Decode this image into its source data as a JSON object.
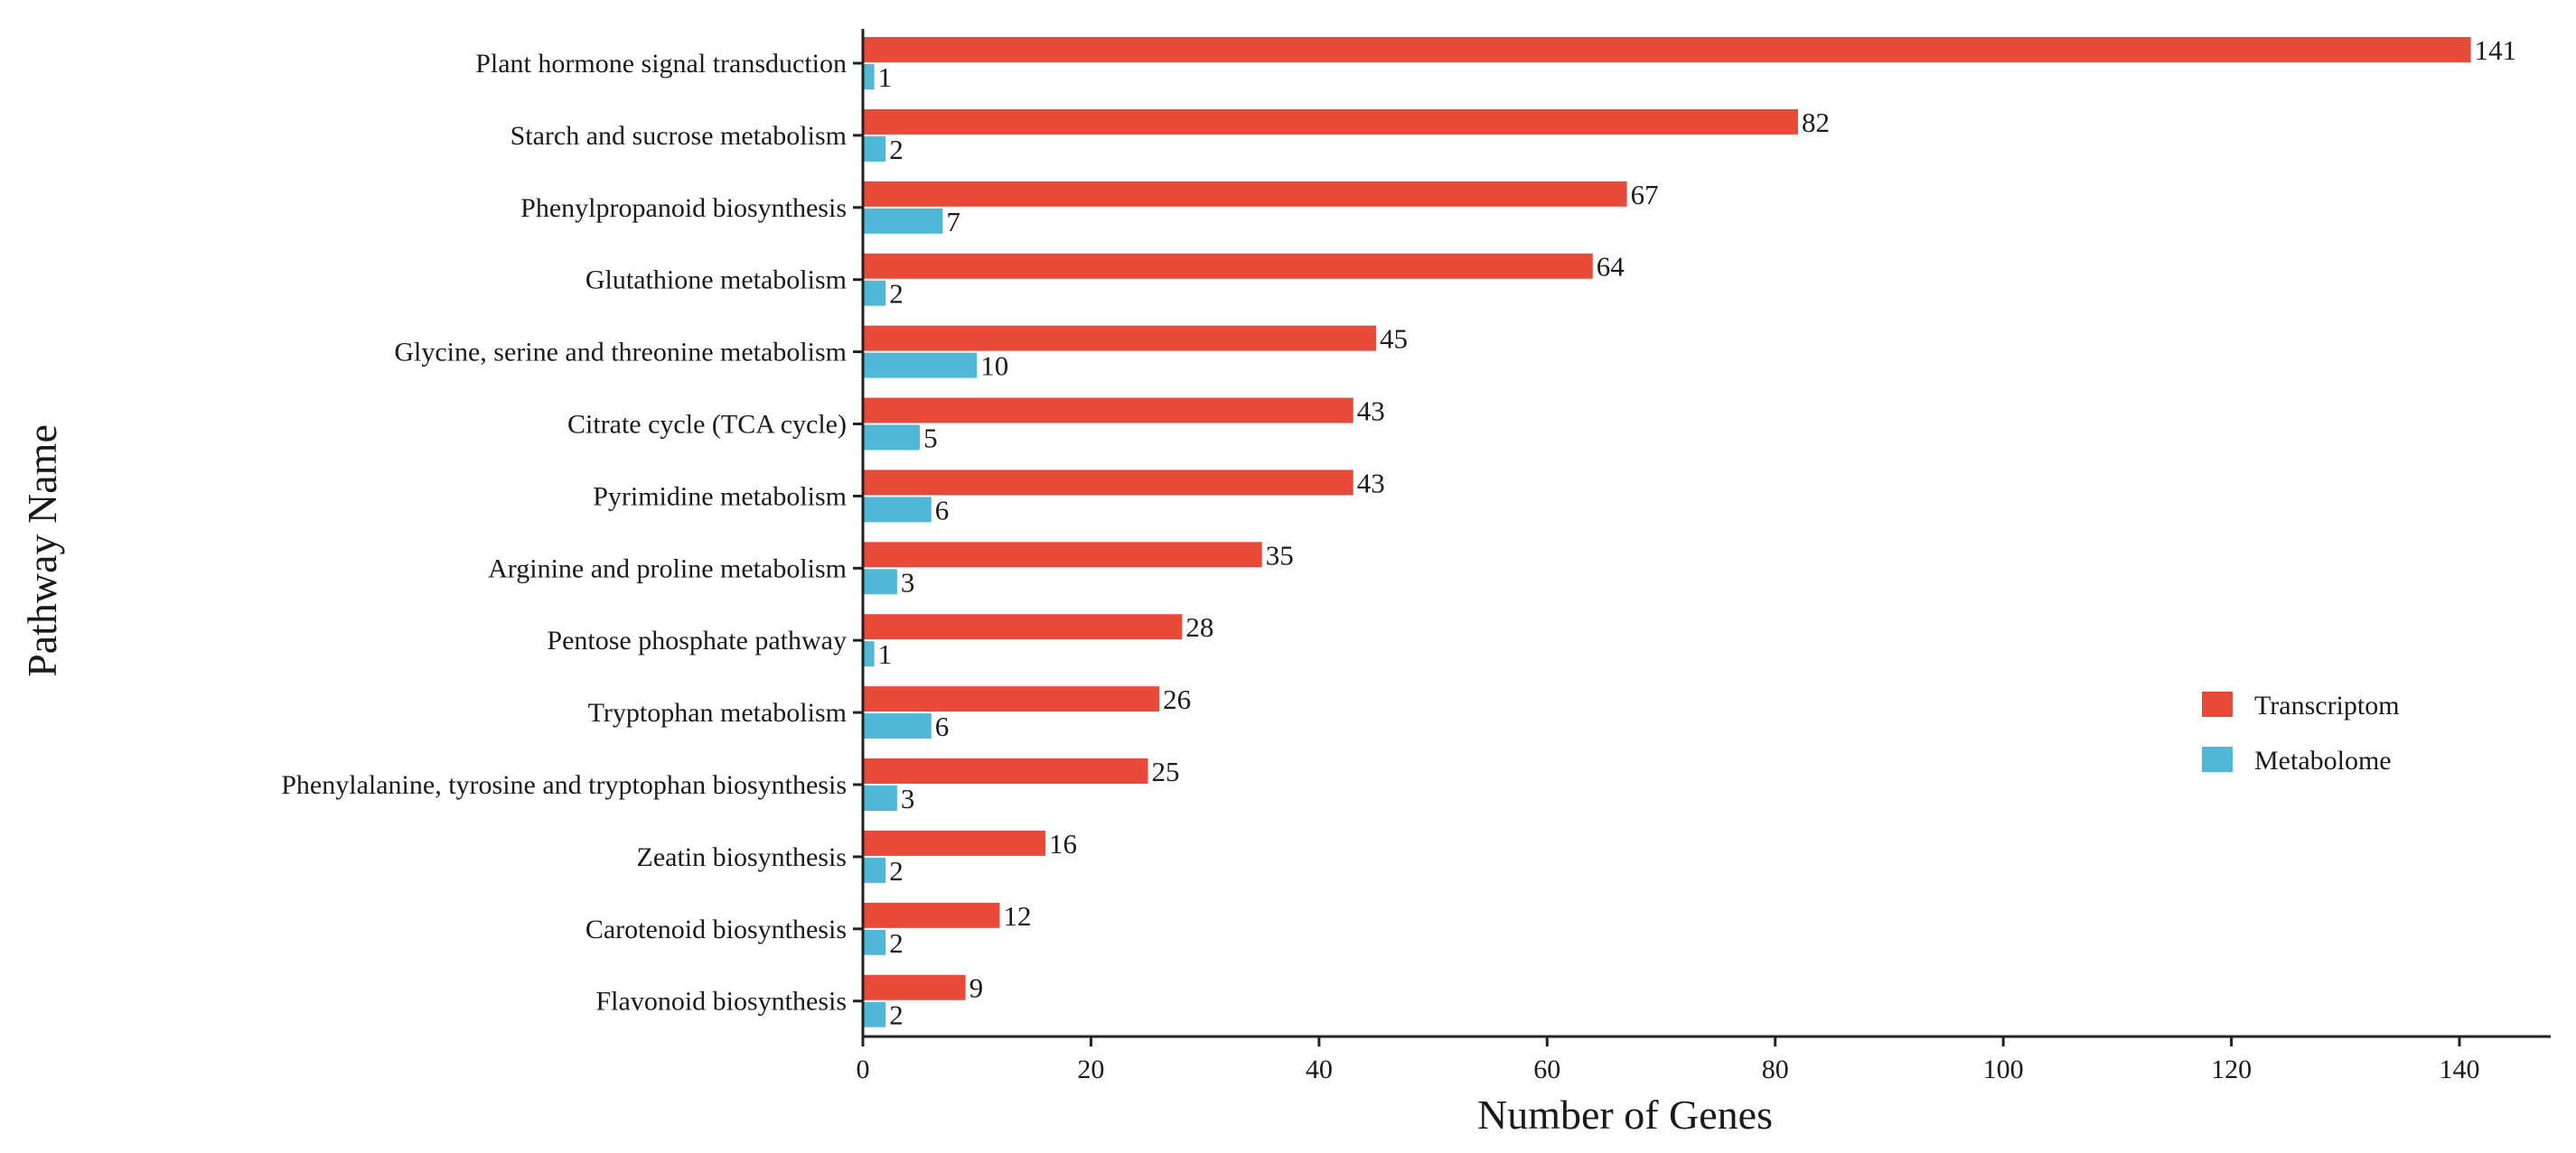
{
  "chart_data": {
    "type": "bar",
    "orientation": "horizontal",
    "title": "",
    "xlabel": "Number of Genes",
    "ylabel": "Pathway Name",
    "xlim": [
      0,
      148
    ],
    "xticks": [
      0,
      20,
      40,
      60,
      80,
      100,
      120,
      140
    ],
    "grid": false,
    "legend_position": "right-center",
    "categories": [
      "Plant hormone signal transduction",
      "Starch and sucrose metabolism",
      "Phenylpropanoid biosynthesis",
      "Glutathione metabolism",
      "Glycine, serine and threonine metabolism",
      "Citrate cycle (TCA cycle)",
      "Pyrimidine metabolism",
      "Arginine and proline metabolism",
      "Pentose phosphate pathway",
      "Tryptophan metabolism",
      "Phenylalanine, tyrosine and tryptophan biosynthesis",
      "Zeatin biosynthesis",
      "Carotenoid biosynthesis",
      "Flavonoid biosynthesis"
    ],
    "series": [
      {
        "name": "Transcriptom",
        "color": "#e84a3a",
        "values": [
          141,
          82,
          67,
          64,
          45,
          43,
          43,
          35,
          28,
          26,
          25,
          16,
          12,
          9
        ]
      },
      {
        "name": "Metabolome",
        "color": "#4fb8d6",
        "values": [
          1,
          2,
          7,
          2,
          10,
          5,
          6,
          3,
          1,
          6,
          3,
          2,
          2,
          2
        ]
      }
    ]
  }
}
